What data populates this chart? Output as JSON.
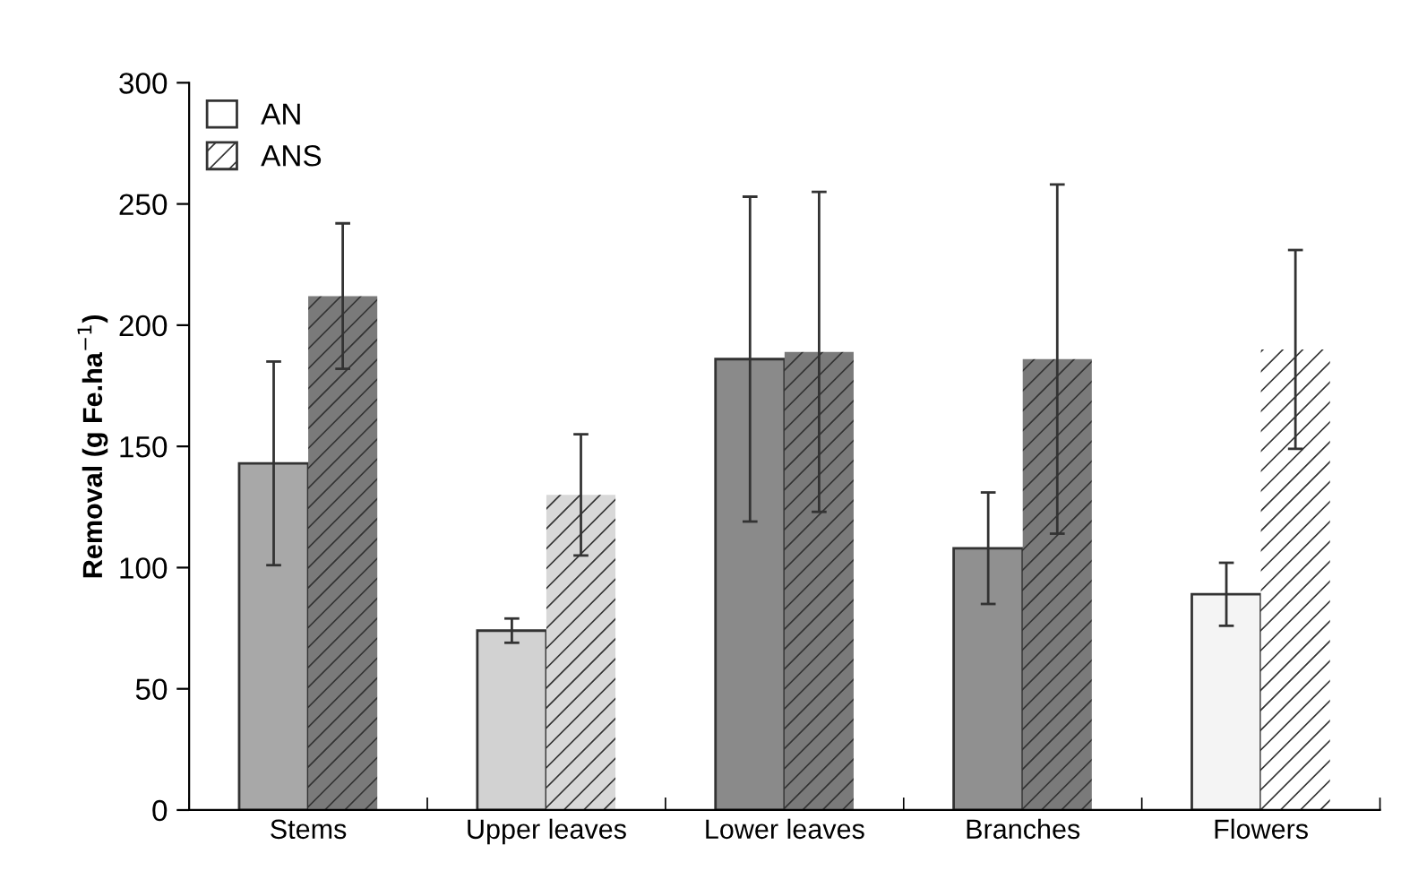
{
  "chart_data": {
    "type": "bar",
    "ylabel": "Removal (g Fe.ha$^{−1}$)",
    "categories": [
      "Stems",
      "Upper leaves",
      "Lower leaves",
      "Branches",
      "Flowers"
    ],
    "series": [
      {
        "name": "AN",
        "color": "#ffffff",
        "colors": [
          "#a8a8a8",
          "#d2d2d2",
          "#8a8a8a",
          "#909090",
          "#f4f4f4"
        ],
        "values": [
          143,
          74,
          186,
          108,
          89
        ],
        "errors": [
          42,
          5,
          67,
          23,
          13
        ]
      },
      {
        "name": "ANS",
        "color": "#ffffff",
        "colors": [
          "#7a7a7a",
          "#d8d8d8",
          "#7a7a7a",
          "#7a7a7a",
          "#ffffff"
        ],
        "values": [
          212,
          130,
          189,
          186,
          190
        ],
        "errors": [
          30,
          25,
          66,
          72,
          41
        ]
      }
    ],
    "ylim": [
      0,
      300
    ],
    "yticks": [
      0,
      50,
      100,
      150,
      200,
      250,
      300
    ],
    "grid": false,
    "legend": "top left"
  }
}
